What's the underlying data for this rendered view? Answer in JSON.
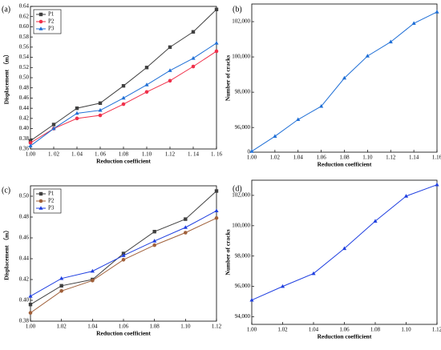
{
  "chart_data": [
    {
      "type": "line",
      "panel_label": "(a)",
      "xlabel": "Reduction coefficient",
      "ylabel": "Displacement （m）",
      "x": [
        1.0,
        1.02,
        1.04,
        1.06,
        1.08,
        1.1,
        1.12,
        1.14,
        1.16
      ],
      "xlim": [
        1.0,
        1.16
      ],
      "xticks": [
        {
          "value": 1.0,
          "label": "1.00"
        },
        {
          "value": 1.02,
          "label": "1. 02"
        },
        {
          "value": 1.04,
          "label": "1. 04"
        },
        {
          "value": 1.06,
          "label": "1. 06"
        },
        {
          "value": 1.08,
          "label": "1.08"
        },
        {
          "value": 1.1,
          "label": "1.10"
        },
        {
          "value": 1.12,
          "label": "1.12"
        },
        {
          "value": 1.14,
          "label": "1. 14"
        },
        {
          "value": 1.16,
          "label": "1. 16"
        }
      ],
      "ylim": [
        0.36,
        0.64
      ],
      "yticks": [
        {
          "value": 0.36,
          "label": "0.36"
        },
        {
          "value": 0.38,
          "label": "0.38"
        },
        {
          "value": 0.4,
          "label": "0.40"
        },
        {
          "value": 0.42,
          "label": "0.42"
        },
        {
          "value": 0.44,
          "label": "0.44"
        },
        {
          "value": 0.46,
          "label": "0.46"
        },
        {
          "value": 0.48,
          "label": "0.48"
        },
        {
          "value": 0.5,
          "label": "0.50"
        },
        {
          "value": 0.52,
          "label": "0.52"
        },
        {
          "value": 0.54,
          "label": "0.54"
        },
        {
          "value": 0.56,
          "label": "0.56"
        },
        {
          "value": 0.58,
          "label": "0.58"
        },
        {
          "value": 0.6,
          "label": "0.60"
        },
        {
          "value": 0.62,
          "label": "0.62"
        },
        {
          "value": 0.64,
          "label": "0.64"
        }
      ],
      "legend": "upper left",
      "series": [
        {
          "name": "P1",
          "color": "#404040",
          "marker": "square",
          "values": [
            0.376,
            0.408,
            0.44,
            0.45,
            0.484,
            0.52,
            0.56,
            0.59,
            0.634
          ]
        },
        {
          "name": "P2",
          "color": "#f0304a",
          "marker": "circle",
          "values": [
            0.372,
            0.4,
            0.42,
            0.426,
            0.448,
            0.472,
            0.494,
            0.522,
            0.552
          ]
        },
        {
          "name": "P3",
          "color": "#1f6fd6",
          "marker": "triangle",
          "values": [
            0.366,
            0.4,
            0.43,
            0.436,
            0.46,
            0.486,
            0.514,
            0.538,
            0.568
          ]
        }
      ]
    },
    {
      "type": "line",
      "panel_label": "(b)",
      "xlabel": "Reduction coefficient",
      "ylabel": "Number of cracks",
      "x": [
        1.0,
        1.02,
        1.04,
        1.06,
        1.08,
        1.1,
        1.12,
        1.14,
        1.16
      ],
      "xlim": [
        1.0,
        1.16
      ],
      "xticks": [
        {
          "value": 1.0,
          "label": "1.00"
        },
        {
          "value": 1.02,
          "label": "1.02"
        },
        {
          "value": 1.04,
          "label": "1.04"
        },
        {
          "value": 1.06,
          "label": "1.06"
        },
        {
          "value": 1.08,
          "label": "1.08"
        },
        {
          "value": 1.1,
          "label": "1.10"
        },
        {
          "value": 1.12,
          "label": "1.12"
        },
        {
          "value": 1.14,
          "label": "1.14"
        },
        {
          "value": 1.16,
          "label": "1.16"
        }
      ],
      "ylim": [
        94600,
        103000
      ],
      "y_break_label": "0",
      "yticks": [
        {
          "value": 96000,
          "label": "96,000"
        },
        {
          "value": 98000,
          "label": "98,000"
        },
        {
          "value": 100000,
          "label": "100,000"
        },
        {
          "value": 102000,
          "label": "102,000"
        }
      ],
      "series": [
        {
          "name": null,
          "color": "#1f6fd6",
          "marker": "triangle",
          "values": [
            94650,
            95500,
            96450,
            97200,
            98800,
            100050,
            100850,
            101900,
            102550
          ]
        }
      ]
    },
    {
      "type": "line",
      "panel_label": "(c)",
      "xlabel": "Reduction coefficient",
      "ylabel": "Displacement （m）",
      "x": [
        1.0,
        1.02,
        1.04,
        1.06,
        1.08,
        1.1,
        1.12
      ],
      "xlim": [
        1.0,
        1.12
      ],
      "xticks": [
        {
          "value": 1.0,
          "label": "1.00"
        },
        {
          "value": 1.02,
          "label": "1.02"
        },
        {
          "value": 1.04,
          "label": "1.04"
        },
        {
          "value": 1.06,
          "label": "1.06"
        },
        {
          "value": 1.08,
          "label": "1.08"
        },
        {
          "value": 1.1,
          "label": "1.10"
        },
        {
          "value": 1.12,
          "label": "1.12"
        }
      ],
      "ylim": [
        0.38,
        0.51
      ],
      "yticks": [
        {
          "value": 0.38,
          "label": "0.38"
        },
        {
          "value": 0.4,
          "label": "0.40"
        },
        {
          "value": 0.42,
          "label": "0.42"
        },
        {
          "value": 0.44,
          "label": "0.44"
        },
        {
          "value": 0.46,
          "label": "0.46"
        },
        {
          "value": 0.48,
          "label": "0.48"
        },
        {
          "value": 0.5,
          "label": "0.50"
        }
      ],
      "legend": "upper left",
      "series": [
        {
          "name": "P1",
          "color": "#404040",
          "marker": "square",
          "values": [
            0.396,
            0.414,
            0.42,
            0.445,
            0.466,
            0.478,
            0.505
          ]
        },
        {
          "name": "P2",
          "color": "#a0603a",
          "marker": "circle",
          "values": [
            0.388,
            0.409,
            0.419,
            0.439,
            0.453,
            0.465,
            0.479
          ]
        },
        {
          "name": "P3",
          "color": "#1f3fe0",
          "marker": "triangle",
          "values": [
            0.404,
            0.421,
            0.428,
            0.443,
            0.457,
            0.47,
            0.486
          ]
        }
      ]
    },
    {
      "type": "line",
      "panel_label": "(d)",
      "xlabel": "Reduction coefficient",
      "ylabel": "Number of cracks",
      "x": [
        1.0,
        1.02,
        1.04,
        1.06,
        1.08,
        1.1,
        1.12
      ],
      "xlim": [
        1.0,
        1.12
      ],
      "xticks": [
        {
          "value": 1.0,
          "label": "1.00"
        },
        {
          "value": 1.02,
          "label": "1.02"
        },
        {
          "value": 1.04,
          "label": "1.04"
        },
        {
          "value": 1.06,
          "label": "1.06"
        },
        {
          "value": 1.08,
          "label": "1.08"
        },
        {
          "value": 1.1,
          "label": "1.10"
        },
        {
          "value": 1.12,
          "label": "1.12"
        }
      ],
      "ylim": [
        93500,
        103000
      ],
      "yticks": [
        {
          "value": 94000,
          "label": "94,000"
        },
        {
          "value": 96000,
          "label": "96,000"
        },
        {
          "value": 98000,
          "label": "98,000"
        },
        {
          "value": 100000,
          "label": "100,000"
        },
        {
          "value": 102000,
          "label": "102,000"
        }
      ],
      "series": [
        {
          "name": null,
          "color": "#1f3fe0",
          "marker": "triangle",
          "values": [
            95100,
            96000,
            96850,
            98500,
            100300,
            101950,
            102700
          ]
        }
      ]
    }
  ]
}
